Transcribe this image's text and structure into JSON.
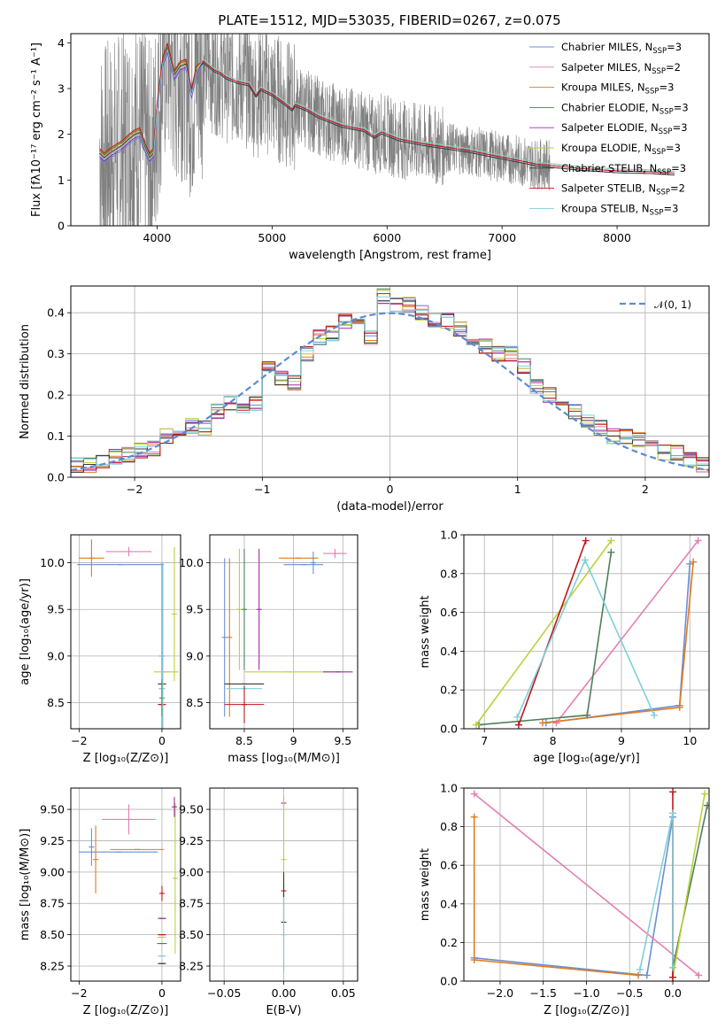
{
  "figure_title": "PLATE=1512, MJD=53035, FIBERID=0267, z=0.075",
  "model_colors": {
    "Chabrier MILES": "#6a8fd6",
    "Salpeter MILES": "#e37fb1",
    "Kroupa MILES": "#e07c1e",
    "Chabrier ELODIE": "#4f7f5a",
    "Salpeter ELODIE": "#a02aa8",
    "Kroupa ELODIE": "#bcd13a",
    "Chabrier STELIB": "#3a3a3a",
    "Salpeter STELIB": "#c0161b",
    "Kroupa STELIB": "#7fcfd9"
  },
  "legend_ssp": [
    {
      "label": "Chabrier MILES, N",
      "sub": "SSP",
      "tail": "=3",
      "color": "#6a8fd6"
    },
    {
      "label": "Salpeter MILES, N",
      "sub": "SSP",
      "tail": "=2",
      "color": "#e37fb1"
    },
    {
      "label": "Kroupa MILES, N",
      "sub": "SSP",
      "tail": "=3",
      "color": "#e07c1e"
    },
    {
      "label": "Chabrier ELODIE, N",
      "sub": "SSP",
      "tail": "=3",
      "color": "#4f7f5a"
    },
    {
      "label": "Salpeter ELODIE, N",
      "sub": "SSP",
      "tail": "=3",
      "color": "#a02aa8"
    },
    {
      "label": "Kroupa ELODIE, N",
      "sub": "SSP",
      "tail": "=3",
      "color": "#bcd13a"
    },
    {
      "label": "Chabrier STELIB, N",
      "sub": "SSP",
      "tail": "=3",
      "color": "#3a3a3a"
    },
    {
      "label": "Salpeter STELIB, N",
      "sub": "SSP",
      "tail": "=2",
      "color": "#c0161b"
    },
    {
      "label": "Kroupa STELIB, N",
      "sub": "SSP",
      "tail": "=3",
      "color": "#7fcfd9"
    }
  ],
  "chart_data": [
    {
      "id": "spectrum",
      "type": "line",
      "xlabel": "wavelength [Angstrom, rest frame]",
      "ylabel": "Flux [fλ10⁻¹⁷ erg cm⁻² s⁻¹ A⁻¹]",
      "xlim": [
        3250,
        8800
      ],
      "ylim": [
        0,
        4.2
      ],
      "xticks": [
        4000,
        5000,
        6000,
        7000,
        8000
      ],
      "yticks": [
        0,
        1,
        2,
        3,
        4
      ],
      "data_range": [
        3500,
        7420
      ],
      "model_continuum": [
        [
          3500,
          1.6
        ],
        [
          3540,
          1.5
        ],
        [
          3600,
          1.62
        ],
        [
          3650,
          1.7
        ],
        [
          3700,
          1.78
        ],
        [
          3750,
          1.9
        ],
        [
          3800,
          2.0
        ],
        [
          3850,
          2.05
        ],
        [
          3900,
          1.7
        ],
        [
          3935,
          1.5
        ],
        [
          3970,
          1.6
        ],
        [
          4000,
          2.6
        ],
        [
          4050,
          3.6
        ],
        [
          4090,
          3.9
        ],
        [
          4150,
          3.3
        ],
        [
          4200,
          3.5
        ],
        [
          4250,
          3.55
        ],
        [
          4300,
          2.9
        ],
        [
          4340,
          3.4
        ],
        [
          4400,
          3.6
        ],
        [
          4450,
          3.5
        ],
        [
          4500,
          3.4
        ],
        [
          4550,
          3.35
        ],
        [
          4600,
          3.25
        ],
        [
          4700,
          3.15
        ],
        [
          4800,
          3.1
        ],
        [
          4861,
          2.85
        ],
        [
          4900,
          3.0
        ],
        [
          5000,
          2.88
        ],
        [
          5100,
          2.7
        ],
        [
          5175,
          2.55
        ],
        [
          5200,
          2.65
        ],
        [
          5300,
          2.55
        ],
        [
          5400,
          2.4
        ],
        [
          5500,
          2.3
        ],
        [
          5600,
          2.2
        ],
        [
          5700,
          2.15
        ],
        [
          5800,
          2.1
        ],
        [
          5890,
          1.95
        ],
        [
          5950,
          2.05
        ],
        [
          6100,
          1.9
        ],
        [
          6300,
          1.8
        ],
        [
          6563,
          1.7
        ],
        [
          6700,
          1.65
        ],
        [
          6900,
          1.55
        ],
        [
          7100,
          1.45
        ],
        [
          7300,
          1.35
        ],
        [
          7500,
          1.3
        ],
        [
          7700,
          1.25
        ],
        [
          8000,
          1.2
        ],
        [
          8300,
          1.18
        ],
        [
          8500,
          1.15
        ]
      ]
    },
    {
      "id": "residuals",
      "type": "step",
      "xlabel": "(data-model)/error",
      "ylabel": "Normed distribution",
      "xlim": [
        -2.5,
        2.5
      ],
      "ylim": [
        0,
        0.465
      ],
      "xticks": [
        -2,
        -1,
        0,
        1,
        2
      ],
      "yticks": [
        0.0,
        0.1,
        0.2,
        0.3,
        0.4
      ],
      "normal_label": "𝒩(0, 1)",
      "normal_color": "#5b8bd5",
      "hist_centers": [
        -2.45,
        -2.35,
        -2.25,
        -2.15,
        -2.05,
        -1.95,
        -1.85,
        -1.75,
        -1.65,
        -1.55,
        -1.45,
        -1.35,
        -1.25,
        -1.15,
        -1.05,
        -0.95,
        -0.85,
        -0.75,
        -0.65,
        -0.55,
        -0.45,
        -0.35,
        -0.25,
        -0.15,
        -0.05,
        0.05,
        0.15,
        0.25,
        0.35,
        0.45,
        0.55,
        0.65,
        0.75,
        0.85,
        0.95,
        1.05,
        1.15,
        1.25,
        1.35,
        1.45,
        1.55,
        1.65,
        1.75,
        1.85,
        1.95,
        2.05,
        2.15,
        2.25,
        2.35,
        2.45
      ],
      "hist_base": [
        0.03,
        0.03,
        0.035,
        0.05,
        0.055,
        0.065,
        0.07,
        0.1,
        0.12,
        0.125,
        0.12,
        0.16,
        0.18,
        0.16,
        0.18,
        0.27,
        0.24,
        0.23,
        0.3,
        0.34,
        0.35,
        0.38,
        0.37,
        0.34,
        0.44,
        0.42,
        0.42,
        0.4,
        0.38,
        0.38,
        0.36,
        0.34,
        0.32,
        0.3,
        0.3,
        0.27,
        0.22,
        0.2,
        0.18,
        0.16,
        0.14,
        0.12,
        0.1,
        0.1,
        0.09,
        0.07,
        0.06,
        0.06,
        0.045,
        0.03
      ]
    },
    {
      "id": "age_vs_Z",
      "type": "errorbar",
      "xlabel": "Z [log₁₀(Z/Z⊙)]",
      "ylabel": "age  [log₁₀(age/yr)]",
      "xlim": [
        -2.2,
        0.45
      ],
      "ylim": [
        8.22,
        10.3
      ],
      "xticks": [
        -2,
        0
      ],
      "yticks": [
        8.5,
        9.0,
        9.5,
        10.0
      ],
      "points": [
        {
          "model": "Chabrier MILES",
          "x": -1.0,
          "y": 9.98,
          "xerr": 1.05,
          "yerr": 0.0
        },
        {
          "model": "Salpeter MILES",
          "x": -0.8,
          "y": 10.12,
          "xerr": 0.55,
          "yerr": 0.05
        },
        {
          "model": "Kroupa MILES",
          "x": -1.7,
          "y": 10.05,
          "xerr": 0.3,
          "yerr": 0.2
        },
        {
          "model": "Chabrier MILES",
          "x": 0.0,
          "y": 9.0,
          "xerr": 0.02,
          "yerr": 1.0
        },
        {
          "model": "Kroupa ELODIE",
          "x": 0.1,
          "y": 8.83,
          "xerr": 0.3,
          "yerr": 0.0
        },
        {
          "model": "Kroupa ELODIE",
          "x": 0.3,
          "y": 9.45,
          "xerr": 0.0,
          "yerr": 0.72
        },
        {
          "model": "Chabrier STELIB",
          "x": 0.0,
          "y": 8.7,
          "xerr": 0.1,
          "yerr": 0.0
        },
        {
          "model": "Kroupa STELIB",
          "x": 0.0,
          "y": 8.65,
          "xerr": 0.08,
          "yerr": 0.0
        },
        {
          "model": "Salpeter STELIB",
          "x": 0.0,
          "y": 8.48,
          "xerr": 0.1,
          "yerr": 0.0
        },
        {
          "model": "Chabrier ELODIE",
          "x": 0.0,
          "y": 8.55,
          "xerr": 0.0,
          "yerr": 0.2
        },
        {
          "model": "Kroupa STELIB",
          "x": 0.02,
          "y": 9.0,
          "xerr": 0.0,
          "yerr": 1.0
        }
      ]
    },
    {
      "id": "age_vs_mass",
      "type": "errorbar",
      "xlabel": "mass [log₁₀(M/M⊙)]",
      "ylabel": "",
      "xlim": [
        8.15,
        9.65
      ],
      "ylim": [
        8.22,
        10.3
      ],
      "xticks": [
        8.5,
        9.0,
        9.5
      ],
      "yticks": [
        8.5,
        9.0,
        9.5,
        10.0
      ],
      "points": [
        {
          "model": "Chabrier MILES",
          "x": 8.3,
          "y": 9.2,
          "xerr": 0.0,
          "yerr": 0.85
        },
        {
          "model": "Kroupa MILES",
          "x": 8.35,
          "y": 9.2,
          "xerr": 0.0,
          "yerr": 0.85
        },
        {
          "model": "Kroupa ELODIE",
          "x": 8.45,
          "y": 9.5,
          "xerr": 0.0,
          "yerr": 0.65
        },
        {
          "model": "Chabrier ELODIE",
          "x": 8.5,
          "y": 9.5,
          "xerr": 0.0,
          "yerr": 0.65
        },
        {
          "model": "Salpeter ELODIE",
          "x": 8.65,
          "y": 9.5,
          "xerr": 0.0,
          "yerr": 0.65
        },
        {
          "model": "Chabrier MILES",
          "x": 9.1,
          "y": 9.98,
          "xerr": 0.2,
          "yerr": 0.0
        },
        {
          "model": "Kroupa MILES",
          "x": 9.05,
          "y": 10.05,
          "xerr": 0.2,
          "yerr": 0.0
        },
        {
          "model": "Salpeter MILES",
          "x": 9.42,
          "y": 10.1,
          "xerr": 0.12,
          "yerr": 0.05
        },
        {
          "model": "Chabrier MILES",
          "x": 9.2,
          "y": 10.0,
          "xerr": 0.0,
          "yerr": 0.12
        },
        {
          "model": "Kroupa ELODIE",
          "x": 8.95,
          "y": 8.83,
          "xerr": 0.45,
          "yerr": 0.0
        },
        {
          "model": "Salpeter ELODIE",
          "x": 9.45,
          "y": 8.83,
          "xerr": 0.15,
          "yerr": 0.0
        },
        {
          "model": "Chabrier STELIB",
          "x": 8.5,
          "y": 8.7,
          "xerr": 0.2,
          "yerr": 0.0
        },
        {
          "model": "Kroupa STELIB",
          "x": 8.5,
          "y": 8.65,
          "xerr": 0.18,
          "yerr": 0.0
        },
        {
          "model": "Salpeter STELIB",
          "x": 8.5,
          "y": 8.48,
          "xerr": 0.2,
          "yerr": 0.2
        }
      ]
    },
    {
      "id": "weight_vs_age",
      "type": "line",
      "xlabel": "age  [log₁₀(age/yr)]",
      "ylabel": "mass weight",
      "xlim": [
        6.7,
        10.28
      ],
      "ylim": [
        0,
        1.0
      ],
      "xticks": [
        7,
        8,
        9,
        10
      ],
      "yticks": [
        0.0,
        0.2,
        0.4,
        0.6,
        0.8,
        1.0
      ],
      "series": [
        {
          "model": "Chabrier MILES",
          "x": [
            7.9,
            9.85,
            10.0
          ],
          "y": [
            0.03,
            0.12,
            0.85
          ]
        },
        {
          "model": "Salpeter MILES",
          "x": [
            8.05,
            10.12
          ],
          "y": [
            0.03,
            0.97
          ]
        },
        {
          "model": "Kroupa MILES",
          "x": [
            7.85,
            9.85,
            10.05
          ],
          "y": [
            0.03,
            0.11,
            0.86
          ]
        },
        {
          "model": "Chabrier ELODIE",
          "x": [
            6.92,
            8.5,
            8.85
          ],
          "y": [
            0.02,
            0.07,
            0.91
          ]
        },
        {
          "model": "Kroupa ELODIE",
          "x": [
            6.88,
            8.85
          ],
          "y": [
            0.02,
            0.97
          ]
        },
        {
          "model": "Salpeter STELIB",
          "x": [
            7.5,
            8.48
          ],
          "y": [
            0.02,
            0.97
          ]
        },
        {
          "model": "Kroupa STELIB",
          "x": [
            7.48,
            8.47,
            9.48
          ],
          "y": [
            0.06,
            0.87,
            0.07
          ]
        }
      ]
    },
    {
      "id": "mass_vs_Z",
      "type": "errorbar",
      "xlabel": "Z [log₁₀(Z/Z⊙)]",
      "ylabel": "mass [log₁₀(M/M⊙)]",
      "xlim": [
        -2.2,
        0.45
      ],
      "ylim": [
        8.13,
        9.67
      ],
      "xticks": [
        -2,
        0
      ],
      "yticks": [
        8.25,
        8.5,
        8.75,
        9.0,
        9.25,
        9.5
      ],
      "points": [
        {
          "model": "Chabrier MILES",
          "x": -1.05,
          "y": 9.16,
          "xerr": 0.95,
          "yerr": 0.0
        },
        {
          "model": "Kroupa MILES",
          "x": -1.6,
          "y": 9.1,
          "xerr": 0.0,
          "yerr": 0.27
        },
        {
          "model": "Kroupa MILES",
          "x": -0.6,
          "y": 9.18,
          "xerr": 0.65,
          "yerr": 0.0
        },
        {
          "model": "Salpeter MILES",
          "x": -0.8,
          "y": 9.42,
          "xerr": 0.65,
          "yerr": 0.12
        },
        {
          "model": "Chabrier MILES",
          "x": -1.7,
          "y": 9.2,
          "xerr": 0.0,
          "yerr": 0.15
        },
        {
          "model": "Kroupa ELODIE",
          "x": 0.32,
          "y": 8.95,
          "xerr": 0.0,
          "yerr": 0.6
        },
        {
          "model": "Salpeter ELODIE",
          "x": 0.3,
          "y": 9.52,
          "xerr": 0.0,
          "yerr": 0.08
        },
        {
          "model": "Salpeter ELODIE",
          "x": 0.0,
          "y": 8.63,
          "xerr": 0.1,
          "yerr": 0.0
        },
        {
          "model": "Salpeter STELIB",
          "x": 0.0,
          "y": 8.5,
          "xerr": 0.1,
          "yerr": 0.0
        },
        {
          "model": "Salpeter STELIB",
          "x": 0.0,
          "y": 8.83,
          "xerr": 0.0,
          "yerr": 0.06
        },
        {
          "model": "Kroupa ELODIE",
          "x": 0.0,
          "y": 8.48,
          "xerr": 0.1,
          "yerr": 0.0
        },
        {
          "model": "Chabrier ELODIE",
          "x": 0.0,
          "y": 8.43,
          "xerr": 0.12,
          "yerr": 0.0
        },
        {
          "model": "Kroupa STELIB",
          "x": 0.0,
          "y": 8.33,
          "xerr": 0.1,
          "yerr": 0.0
        },
        {
          "model": "Chabrier STELIB",
          "x": 0.0,
          "y": 8.27,
          "xerr": 0.1,
          "yerr": 0.0
        }
      ]
    },
    {
      "id": "mass_vs_ebv",
      "type": "errorbar",
      "xlabel": "E(B-V)",
      "ylabel": "",
      "xlim": [
        -0.062,
        0.062
      ],
      "ylim": [
        8.13,
        9.67
      ],
      "xticks": [
        -0.05,
        0.0,
        0.05
      ],
      "xticklabels": [
        "−0.05",
        "0.00",
        "0.05"
      ],
      "yticks": [
        8.25,
        8.5,
        8.75,
        9.0,
        9.25,
        9.5
      ],
      "points": [
        {
          "model": "Salpeter ELODIE",
          "x": 0.0,
          "y": 9.55,
          "xerr": 0.0,
          "yerr": 0.05
        },
        {
          "model": "Kroupa ELODIE",
          "x": 0.0,
          "y": 9.1,
          "xerr": 0.0,
          "yerr": 0.5
        },
        {
          "model": "Salpeter STELIB",
          "x": 0.0,
          "y": 8.85,
          "xerr": 0.0,
          "yerr": 0.05
        },
        {
          "model": "Chabrier STELIB",
          "x": 0.0,
          "y": 8.6,
          "xerr": 0.0,
          "yerr": 0.4
        },
        {
          "model": "Kroupa STELIB",
          "x": 0.0,
          "y": 8.5,
          "xerr": 0.0,
          "yerr": 0.3
        }
      ]
    },
    {
      "id": "weight_vs_Z",
      "type": "line",
      "xlabel": "Z [log₁₀(Z/Z⊙)]",
      "ylabel": "mass weight",
      "xlim": [
        -2.42,
        0.42
      ],
      "ylim": [
        0,
        1.0
      ],
      "xticks": [
        -2.0,
        -1.5,
        -1.0,
        -0.5,
        0.0
      ],
      "xticklabels": [
        "−2.0",
        "−1.5",
        "−1.0",
        "−0.5",
        "0.0"
      ],
      "yticks": [
        0.0,
        0.2,
        0.4,
        0.6,
        0.8,
        1.0
      ],
      "series": [
        {
          "model": "Chabrier MILES",
          "x": [
            -2.3,
            -0.3,
            0.0
          ],
          "y": [
            0.12,
            0.03,
            0.85
          ]
        },
        {
          "model": "Salpeter MILES",
          "x": [
            -2.3,
            0.3
          ],
          "y": [
            0.97,
            0.03
          ]
        },
        {
          "model": "Kroupa MILES",
          "x": [
            -2.3,
            -2.3,
            -0.4
          ],
          "y": [
            0.85,
            0.11,
            0.03
          ]
        },
        {
          "model": "Chabrier ELODIE",
          "x": [
            0.0,
            0.0,
            0.4
          ],
          "y": [
            0.02,
            0.07,
            0.91
          ]
        },
        {
          "model": "Kroupa ELODIE",
          "x": [
            0.0,
            0.37
          ],
          "y": [
            0.02,
            0.97
          ]
        },
        {
          "model": "Salpeter STELIB",
          "x": [
            0.0,
            0.0
          ],
          "y": [
            0.02,
            0.98
          ]
        },
        {
          "model": "Kroupa STELIB",
          "x": [
            -0.38,
            0.0,
            0.0
          ],
          "y": [
            0.06,
            0.87,
            0.07
          ]
        }
      ]
    }
  ]
}
